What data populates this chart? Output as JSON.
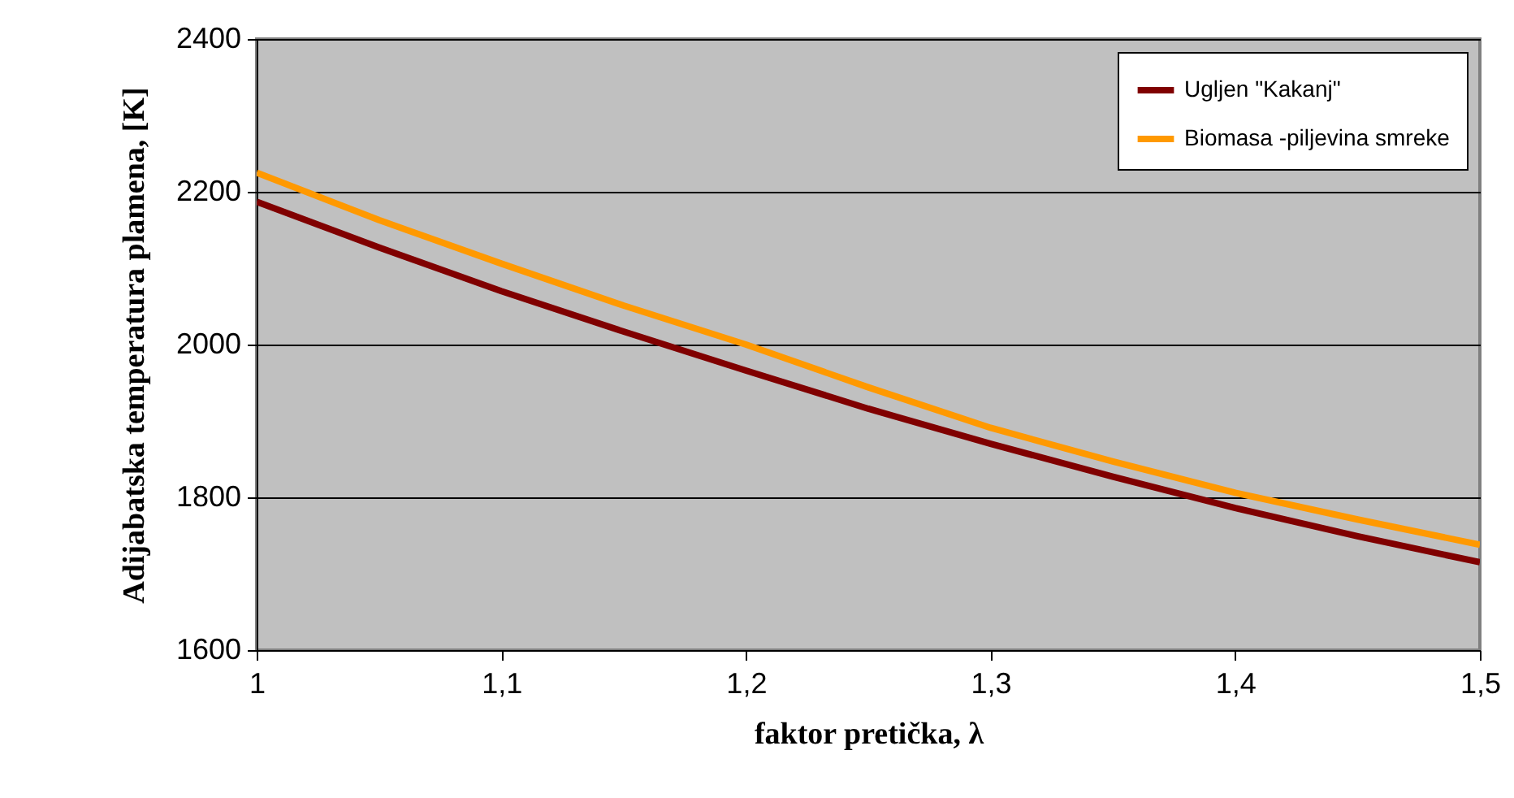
{
  "chart_data": {
    "type": "line",
    "xlabel": "faktor pretička, λ",
    "ylabel": "Adijabatska temperatura plamena, [K]",
    "x": [
      1,
      1.05,
      1.1,
      1.15,
      1.2,
      1.25,
      1.3,
      1.35,
      1.4,
      1.45,
      1.5
    ],
    "series": [
      {
        "name": "Ugljen \"Kakanj\"",
        "color": "#800000",
        "values": [
          2187,
          2127,
          2070,
          2017,
          1966,
          1916,
          1870,
          1827,
          1786,
          1749,
          1715
        ]
      },
      {
        "name": "Biomasa -piljevina smreke",
        "color": "#ff9900",
        "values": [
          2225,
          2163,
          2106,
          2051,
          2000,
          1944,
          1891,
          1847,
          1806,
          1771,
          1738
        ]
      }
    ],
    "xlim": [
      1,
      1.5
    ],
    "xticks": [
      1,
      {
        "value": 1.1,
        "label": "1,1"
      },
      {
        "value": 1.2,
        "label": "1,2"
      },
      {
        "value": 1.3,
        "label": "1,3"
      },
      {
        "value": 1.4,
        "label": "1,4"
      },
      {
        "value": 1.5,
        "label": "1,5"
      }
    ],
    "ylim": [
      1600,
      2400
    ],
    "yticks": [
      1600,
      1800,
      2000,
      2200,
      2400
    ],
    "grid": "y",
    "legend": "top right",
    "marker": "none",
    "line_style": "solid"
  }
}
